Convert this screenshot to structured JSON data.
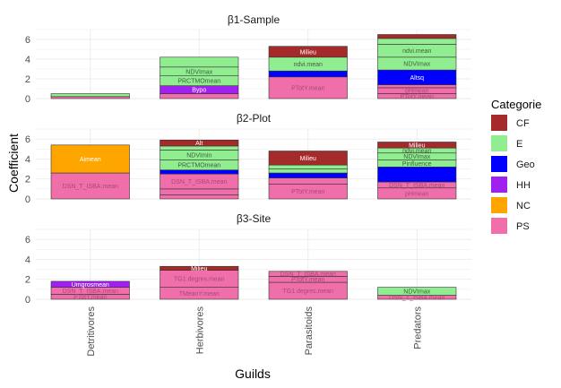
{
  "chart_data": {
    "type": "bar",
    "stacked": true,
    "xlabel": "Guilds",
    "ylabel": "Coefficient",
    "ylim": [
      0,
      7
    ],
    "y_ticks": [
      0,
      2,
      4,
      6
    ],
    "categories": [
      "Detritivores",
      "Herbivores",
      "Parasitoids",
      "Predators"
    ],
    "grid": true,
    "legend": {
      "title": "Categorie",
      "position": "right",
      "items": [
        {
          "key": "CF",
          "label": "CF",
          "color": "#a52a2a"
        },
        {
          "key": "E",
          "label": "E",
          "color": "#90ee90"
        },
        {
          "key": "Geo",
          "label": "Geo",
          "color": "#0000ff"
        },
        {
          "key": "HH",
          "label": "HH",
          "color": "#a020f0"
        },
        {
          "key": "NC",
          "label": "NC",
          "color": "#ffa500"
        },
        {
          "key": "PS",
          "label": "PS",
          "color": "#f06eaa"
        }
      ]
    },
    "panels": [
      {
        "title": "β1-Sample",
        "bars": [
          {
            "category": "Detritivores",
            "segments": [
              {
                "label": "",
                "value": 0.2,
                "cat": "PS"
              },
              {
                "label": "",
                "value": 0.3,
                "cat": "E"
              }
            ]
          },
          {
            "category": "Herbivores",
            "segments": [
              {
                "label": "",
                "value": 0.5,
                "cat": "PS"
              },
              {
                "label": "Bypo",
                "value": 0.8,
                "cat": "HH"
              },
              {
                "label": "PRCTMOmean",
                "value": 1.0,
                "cat": "E"
              },
              {
                "label": "NDVImax",
                "value": 0.9,
                "cat": "E"
              },
              {
                "label": "",
                "value": 1.0,
                "cat": "E"
              }
            ]
          },
          {
            "category": "Parasitoids",
            "segments": [
              {
                "label": "PTotY.mean",
                "value": 2.2,
                "cat": "PS"
              },
              {
                "label": "",
                "value": 0.6,
                "cat": "Geo"
              },
              {
                "label": "ndvi.mean",
                "value": 1.4,
                "cat": "E"
              },
              {
                "label": "Milieu",
                "value": 1.1,
                "cat": "CF"
              }
            ]
          },
          {
            "category": "Predators",
            "segments": [
              {
                "label": "PTotY.mean",
                "value": 0.5,
                "cat": "PS"
              },
              {
                "label": "pHmean",
                "value": 0.6,
                "cat": "PS"
              },
              {
                "label": "",
                "value": 0.3,
                "cat": "PS"
              },
              {
                "label": "Altsq",
                "value": 1.5,
                "cat": "Geo"
              },
              {
                "label": "NDVImax",
                "value": 1.3,
                "cat": "E"
              },
              {
                "label": "ndvi.mean",
                "value": 1.3,
                "cat": "E"
              },
              {
                "label": "",
                "value": 0.6,
                "cat": "E"
              },
              {
                "label": "",
                "value": 0.4,
                "cat": "CF"
              }
            ]
          }
        ]
      },
      {
        "title": "β2-Plot",
        "bars": [
          {
            "category": "Detritivores",
            "segments": [
              {
                "label": "DSN_T_ISBA.mean",
                "value": 2.6,
                "cat": "PS"
              },
              {
                "label": "Aimean",
                "value": 2.8,
                "cat": "NC"
              }
            ]
          },
          {
            "category": "Herbivores",
            "segments": [
              {
                "label": "",
                "value": 0.4,
                "cat": "PS"
              },
              {
                "label": "",
                "value": 0.6,
                "cat": "PS"
              },
              {
                "label": "DSN_T_ISBA.mean",
                "value": 1.5,
                "cat": "PS"
              },
              {
                "label": "",
                "value": 0.4,
                "cat": "Geo"
              },
              {
                "label": "PRCTMOmean",
                "value": 1.0,
                "cat": "E"
              },
              {
                "label": "NDVImin",
                "value": 1.0,
                "cat": "E"
              },
              {
                "label": "",
                "value": 0.4,
                "cat": "E"
              },
              {
                "label": "Alt",
                "value": 0.6,
                "cat": "CF"
              }
            ]
          },
          {
            "category": "Parasitoids",
            "segments": [
              {
                "label": "PTotY.mean",
                "value": 1.5,
                "cat": "PS"
              },
              {
                "label": "",
                "value": 0.6,
                "cat": "PS"
              },
              {
                "label": "",
                "value": 0.5,
                "cat": "Geo"
              },
              {
                "label": "",
                "value": 0.4,
                "cat": "E"
              },
              {
                "label": "",
                "value": 0.4,
                "cat": "E"
              },
              {
                "label": "Milieu",
                "value": 1.4,
                "cat": "CF"
              }
            ]
          },
          {
            "category": "Predators",
            "segments": [
              {
                "label": "pHmean",
                "value": 1.1,
                "cat": "PS"
              },
              {
                "label": "DSN_T_ISBA.mean",
                "value": 0.6,
                "cat": "PS"
              },
              {
                "label": "",
                "value": 1.5,
                "cat": "Geo"
              },
              {
                "label": "Pinfluence",
                "value": 0.7,
                "cat": "E"
              },
              {
                "label": "NDVImax",
                "value": 0.7,
                "cat": "E"
              },
              {
                "label": "ndvi.mean",
                "value": 0.5,
                "cat": "E"
              },
              {
                "label": "Milieu",
                "value": 0.6,
                "cat": "CF"
              }
            ]
          }
        ]
      },
      {
        "title": "β3-Site",
        "bars": [
          {
            "category": "Detritivores",
            "segments": [
              {
                "label": "PTotY.mean",
                "value": 0.5,
                "cat": "PS"
              },
              {
                "label": "DSN_T_ISBA.mean",
                "value": 0.7,
                "cat": "PS"
              },
              {
                "label": "Umgrosmean",
                "value": 0.6,
                "cat": "HH"
              }
            ]
          },
          {
            "category": "Herbivores",
            "segments": [
              {
                "label": "TMeanY.mean",
                "value": 1.2,
                "cat": "PS"
              },
              {
                "label": "TG1.degres.mean",
                "value": 1.7,
                "cat": "PS"
              },
              {
                "label": "Milieu",
                "value": 0.4,
                "cat": "CF"
              }
            ]
          },
          {
            "category": "Parasitoids",
            "segments": [
              {
                "label": "TG1.degres.mean",
                "value": 1.7,
                "cat": "PS"
              },
              {
                "label": "PTotY.mean",
                "value": 0.6,
                "cat": "PS"
              },
              {
                "label": "DSN_T_ISBA.mean",
                "value": 0.5,
                "cat": "PS"
              }
            ]
          },
          {
            "category": "Predators",
            "segments": [
              {
                "label": "DSN_T_ISBA.mean",
                "value": 0.4,
                "cat": "PS"
              },
              {
                "label": "NDVImax",
                "value": 0.8,
                "cat": "E"
              }
            ]
          }
        ]
      }
    ]
  }
}
